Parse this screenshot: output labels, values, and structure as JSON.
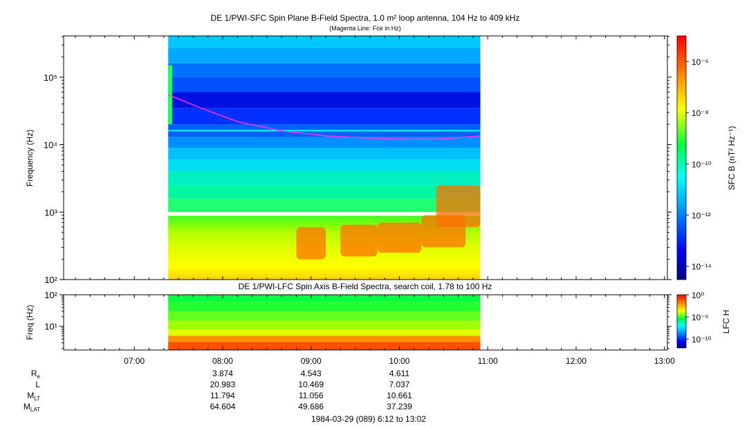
{
  "chart_data": [
    {
      "type": "heatmap",
      "title": "DE 1/PWI-SFC  Spin Plane B-Field Spectra, 1.0 m² loop antenna, 104 Hz to 409 kHz",
      "subtitle": "(Magenta Line: Fce in Hz)",
      "ylabel": "Frequency (Hz)",
      "yscale": "log",
      "ylim": [
        100,
        409000
      ],
      "y_ticks": [
        {
          "v": 100,
          "label": "10²"
        },
        {
          "v": 1000,
          "label": "10³"
        },
        {
          "v": 10000,
          "label": "10⁴"
        },
        {
          "v": 100000,
          "label": "10⁵"
        }
      ],
      "data_time_range": [
        "07:23",
        "10:55"
      ],
      "colorbar": {
        "label": "SFC B (nT² Hz⁻¹)",
        "scale": "log",
        "range": [
          3e-15,
          1e-05
        ],
        "ticks": [
          {
            "v": 1e-06,
            "label": "10⁻⁶"
          },
          {
            "v": 1e-08,
            "label": "10⁻⁸"
          },
          {
            "v": 1e-10,
            "label": "10⁻¹⁰"
          },
          {
            "v": 1e-12,
            "label": "10⁻¹²"
          },
          {
            "v": 1e-14,
            "label": "10⁻¹⁴"
          }
        ]
      },
      "fce_line": {
        "color": "#ff33ff",
        "time": [
          "07:23",
          "07:45",
          "08:10",
          "08:40",
          "09:10",
          "09:40",
          "10:10",
          "10:30",
          "10:55"
        ],
        "freq_hz": [
          55000,
          35000,
          22000,
          16000,
          13500,
          12500,
          12000,
          12200,
          13500
        ]
      }
    },
    {
      "type": "heatmap",
      "title": "DE 1/PWI-LFC  Spin Axis B-Field Spectra, search coil, 1.78 to 100 Hz",
      "ylabel": "Freq (Hz)",
      "yscale": "log",
      "ylim": [
        1.78,
        100
      ],
      "y_ticks": [
        {
          "v": 10,
          "label": "10¹"
        },
        {
          "v": 100,
          "label": "10²"
        }
      ],
      "data_time_range": [
        "07:23",
        "10:55"
      ],
      "colorbar": {
        "label": "LFC H",
        "scale": "log",
        "range": [
          1e-12,
          1
        ],
        "ticks": [
          {
            "v": 1,
            "label": "10⁰"
          },
          {
            "v": 1e-05,
            "label": "10⁻⁵"
          },
          {
            "v": 1e-10,
            "label": "10⁻¹⁰"
          }
        ]
      }
    }
  ],
  "time_axis": {
    "range": [
      "06:12",
      "13:02"
    ],
    "ticks": [
      "07:00",
      "08:00",
      "09:00",
      "10:00",
      "11:00",
      "12:00",
      "13:00"
    ]
  },
  "ephemeris": {
    "times": [
      "08:00",
      "09:00",
      "10:00"
    ],
    "rows": [
      {
        "label": "R",
        "sub": "e",
        "values": [
          "3.874",
          "4.543",
          "4.611"
        ]
      },
      {
        "label": "L",
        "sub": "",
        "values": [
          "20.983",
          "10.469",
          "7.037"
        ]
      },
      {
        "label": "M",
        "sub": "LT",
        "values": [
          "11.794",
          "11.056",
          "10.661"
        ]
      },
      {
        "label": "M",
        "sub": "LAT",
        "values": [
          "64.604",
          "49.686",
          "37.239"
        ]
      }
    ]
  },
  "footer": "1984-03-29 (089) 6:12 to 13:02"
}
